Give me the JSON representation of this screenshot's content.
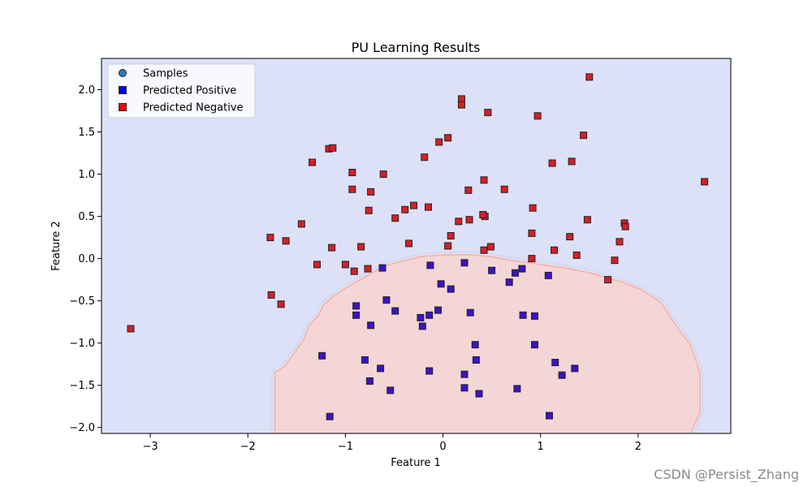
{
  "chart_data": {
    "type": "scatter",
    "title": "PU Learning Results",
    "xlabel": "Feature 1",
    "ylabel": "Feature 2",
    "xlim": [
      -3.5,
      2.95
    ],
    "ylim": [
      -2.07,
      2.37
    ],
    "xticks": [
      -3,
      -2,
      -1,
      0,
      1,
      2
    ],
    "yticks": [
      -2.0,
      -1.5,
      -1.0,
      -0.5,
      0.0,
      0.5,
      1.0,
      1.5,
      2.0
    ],
    "xtick_labels": [
      "−3",
      "−2",
      "−1",
      "0",
      "1",
      "2"
    ],
    "ytick_labels": [
      "−2.0",
      "−1.5",
      "−1.0",
      "−0.5",
      "0.0",
      "0.5",
      "1.0",
      "1.5",
      "2.0"
    ],
    "grid": false,
    "legend_position": "top-left",
    "background_region": {
      "color": "#dde1f7"
    },
    "positive_region": {
      "color": "#f5d6d6",
      "edge_colors": [
        "#f2b8b0",
        "#e7e4f0",
        "#ccd6f3"
      ],
      "polygon": [
        [
          -1.72,
          -2.07
        ],
        [
          -1.72,
          -1.35
        ],
        [
          -1.62,
          -1.28
        ],
        [
          -1.52,
          -1.12
        ],
        [
          -1.42,
          -0.95
        ],
        [
          -1.37,
          -0.8
        ],
        [
          -1.27,
          -0.67
        ],
        [
          -1.22,
          -0.55
        ],
        [
          -1.12,
          -0.45
        ],
        [
          -1.02,
          -0.37
        ],
        [
          -0.87,
          -0.27
        ],
        [
          -0.72,
          -0.17
        ],
        [
          -0.62,
          -0.1
        ],
        [
          -0.47,
          -0.05
        ],
        [
          -0.22,
          0.02
        ],
        [
          0.03,
          0.04
        ],
        [
          0.28,
          0.04
        ],
        [
          0.48,
          0.02
        ],
        [
          0.73,
          -0.03
        ],
        [
          1.03,
          -0.08
        ],
        [
          1.28,
          -0.12
        ],
        [
          1.53,
          -0.18
        ],
        [
          1.83,
          -0.28
        ],
        [
          2.03,
          -0.37
        ],
        [
          2.23,
          -0.52
        ],
        [
          2.33,
          -0.7
        ],
        [
          2.43,
          -0.87
        ],
        [
          2.53,
          -1.02
        ],
        [
          2.58,
          -1.17
        ],
        [
          2.63,
          -1.37
        ],
        [
          2.63,
          -1.82
        ],
        [
          2.53,
          -2.07
        ]
      ]
    },
    "series": [
      {
        "name": "Samples",
        "marker": "circle",
        "color": "#2a79b8",
        "visible_in_plot": false,
        "x": [],
        "y": []
      },
      {
        "name": "Predicted Positive",
        "marker": "square",
        "color": "#0000ff",
        "display_color": "#3b13c6",
        "x": [
          -0.62,
          -0.13,
          0.22,
          -0.02,
          0.08,
          -0.58,
          -0.89,
          -0.49,
          -0.05,
          -0.23,
          -0.14,
          0.28,
          -0.89,
          -0.74,
          -0.21,
          0.33,
          -0.8,
          -0.64,
          0.34,
          -0.14,
          0.22,
          -1.24,
          -0.75,
          -0.54,
          0.22,
          0.37,
          -1.16,
          0.5,
          0.68,
          0.74,
          0.81,
          1.08,
          0.82,
          0.94,
          0.94,
          1.15,
          1.22,
          1.35,
          0.76,
          1.09
        ],
        "y": [
          -0.11,
          -0.08,
          -0.05,
          -0.3,
          -0.36,
          -0.49,
          -0.56,
          -0.62,
          -0.61,
          -0.7,
          -0.67,
          -0.64,
          -0.67,
          -0.79,
          -0.8,
          -1.02,
          -1.2,
          -1.3,
          -1.2,
          -1.33,
          -1.37,
          -1.15,
          -1.45,
          -1.56,
          -1.53,
          -1.6,
          -1.87,
          -0.14,
          -0.28,
          -0.17,
          -0.12,
          -0.2,
          -0.67,
          -0.68,
          -1.02,
          -1.23,
          -1.38,
          -1.3,
          -1.54,
          -1.86
        ]
      },
      {
        "name": "Predicted Negative",
        "marker": "square",
        "color": "#ff0000",
        "display_color": "#d42027",
        "x": [
          1.5,
          0.19,
          0.19,
          0.46,
          0.97,
          1.44,
          0.05,
          -0.04,
          -0.19,
          -1.17,
          -1.13,
          -1.34,
          1.12,
          1.32,
          -0.93,
          -0.61,
          0.42,
          -0.93,
          -0.74,
          0.26,
          0.63,
          -0.3,
          -0.39,
          -0.15,
          -0.49,
          -0.76,
          0.43,
          0.41,
          0.27,
          0.16,
          0.92,
          1.48,
          1.86,
          1.87,
          -1.45,
          0.08,
          0.91,
          1.3,
          -1.77,
          -1.61,
          -0.35,
          0.05,
          0.49,
          1.81,
          -1.14,
          -0.84,
          0.42,
          1.14,
          1.37,
          0.91,
          1.76,
          -1.29,
          -1.0,
          -0.77,
          -0.91,
          1.69,
          -1.76,
          -1.66,
          -3.2,
          2.68
        ],
        "y": [
          2.15,
          1.89,
          1.82,
          1.73,
          1.69,
          1.46,
          1.43,
          1.38,
          1.2,
          1.3,
          1.31,
          1.14,
          1.13,
          1.15,
          1.02,
          1.0,
          0.93,
          0.82,
          0.79,
          0.81,
          0.82,
          0.63,
          0.58,
          0.61,
          0.48,
          0.57,
          0.5,
          0.52,
          0.46,
          0.44,
          0.6,
          0.46,
          0.42,
          0.38,
          0.41,
          0.27,
          0.3,
          0.26,
          0.25,
          0.21,
          0.18,
          0.15,
          0.14,
          0.2,
          0.13,
          0.14,
          0.1,
          0.1,
          0.04,
          0.0,
          -0.02,
          -0.07,
          -0.07,
          -0.12,
          -0.15,
          -0.25,
          -0.43,
          -0.54,
          -0.83,
          0.91
        ]
      }
    ]
  },
  "watermark": "CSDN @Persist_Zhang"
}
